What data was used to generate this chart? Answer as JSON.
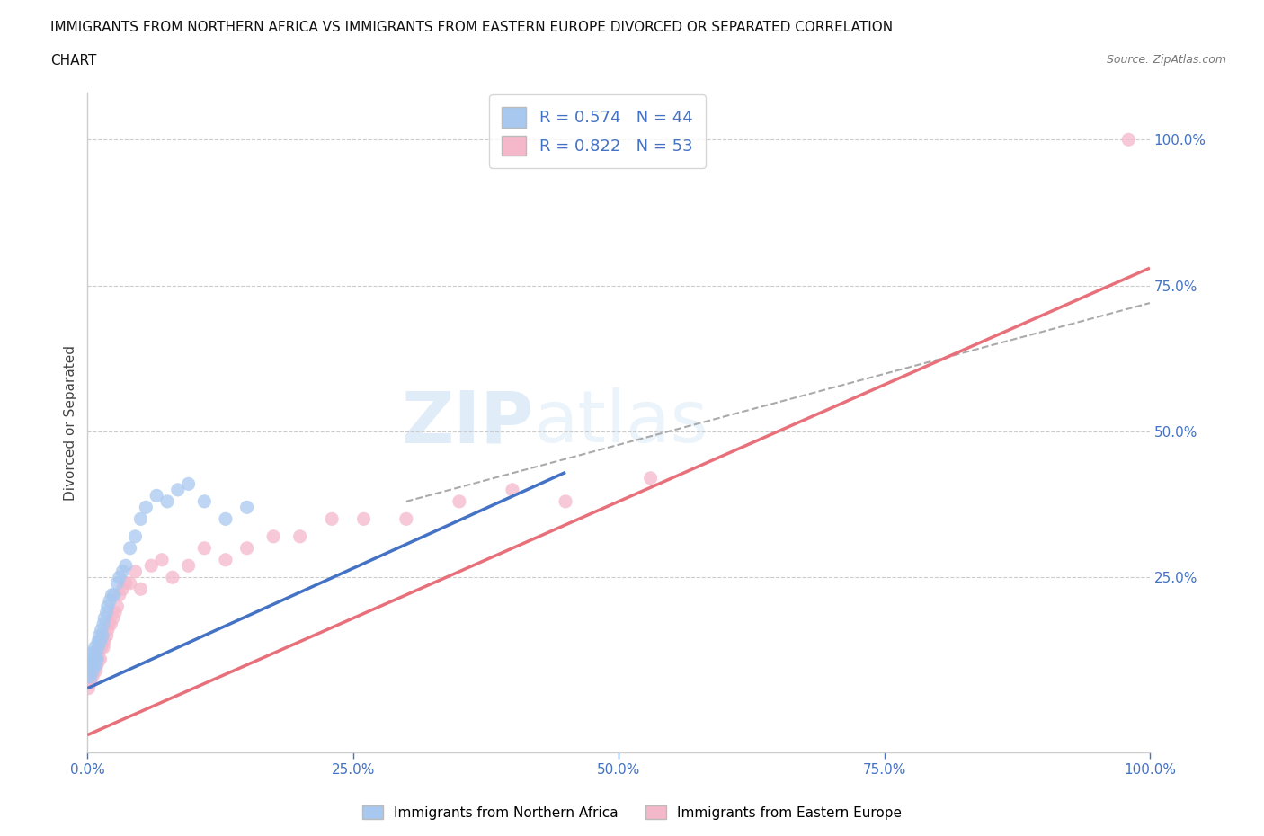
{
  "title_line1": "IMMIGRANTS FROM NORTHERN AFRICA VS IMMIGRANTS FROM EASTERN EUROPE DIVORCED OR SEPARATED CORRELATION",
  "title_line2": "CHART",
  "source_text": "Source: ZipAtlas.com",
  "ylabel": "Divorced or Separated",
  "xlim": [
    0.0,
    1.0
  ],
  "ylim": [
    -0.05,
    1.08
  ],
  "xtick_vals": [
    0.0,
    0.25,
    0.5,
    0.75,
    1.0
  ],
  "ytick_vals": [
    0.25,
    0.5,
    0.75,
    1.0
  ],
  "color_blue": "#A8C8F0",
  "color_blue_line": "#4472C4",
  "color_pink": "#F5B8CB",
  "color_pink_line": "#E8707A",
  "color_blue_text": "#4472C4",
  "color_gray_dashed": "#AAAAAA",
  "R_blue": 0.574,
  "N_blue": 44,
  "R_pink": 0.822,
  "N_pink": 53,
  "watermark_ZIP": "ZIP",
  "watermark_atlas": "atlas",
  "legend_label_blue": "Immigrants from Northern Africa",
  "legend_label_pink": "Immigrants from Eastern Europe",
  "blue_scatter_x": [
    0.001,
    0.002,
    0.002,
    0.003,
    0.003,
    0.004,
    0.004,
    0.005,
    0.005,
    0.006,
    0.006,
    0.007,
    0.007,
    0.008,
    0.008,
    0.009,
    0.01,
    0.01,
    0.011,
    0.012,
    0.013,
    0.014,
    0.015,
    0.016,
    0.018,
    0.019,
    0.021,
    0.023,
    0.025,
    0.028,
    0.03,
    0.033,
    0.036,
    0.04,
    0.045,
    0.05,
    0.055,
    0.065,
    0.075,
    0.085,
    0.095,
    0.11,
    0.13,
    0.15
  ],
  "blue_scatter_y": [
    0.08,
    0.09,
    0.1,
    0.08,
    0.11,
    0.1,
    0.12,
    0.09,
    0.11,
    0.1,
    0.12,
    0.11,
    0.13,
    0.1,
    0.12,
    0.11,
    0.13,
    0.14,
    0.15,
    0.14,
    0.16,
    0.15,
    0.17,
    0.18,
    0.19,
    0.2,
    0.21,
    0.22,
    0.22,
    0.24,
    0.25,
    0.26,
    0.27,
    0.3,
    0.32,
    0.35,
    0.37,
    0.39,
    0.38,
    0.4,
    0.41,
    0.38,
    0.35,
    0.37
  ],
  "pink_scatter_x": [
    0.001,
    0.001,
    0.002,
    0.002,
    0.003,
    0.003,
    0.004,
    0.004,
    0.005,
    0.005,
    0.006,
    0.007,
    0.007,
    0.008,
    0.009,
    0.01,
    0.01,
    0.011,
    0.012,
    0.013,
    0.014,
    0.015,
    0.016,
    0.018,
    0.019,
    0.02,
    0.022,
    0.024,
    0.026,
    0.028,
    0.03,
    0.033,
    0.036,
    0.04,
    0.045,
    0.05,
    0.06,
    0.07,
    0.08,
    0.095,
    0.11,
    0.13,
    0.15,
    0.175,
    0.2,
    0.23,
    0.26,
    0.3,
    0.35,
    0.4,
    0.45,
    0.53,
    0.98
  ],
  "pink_scatter_y": [
    0.06,
    0.08,
    0.07,
    0.09,
    0.07,
    0.08,
    0.09,
    0.1,
    0.08,
    0.1,
    0.09,
    0.1,
    0.11,
    0.09,
    0.1,
    0.11,
    0.12,
    0.13,
    0.11,
    0.13,
    0.14,
    0.13,
    0.14,
    0.15,
    0.16,
    0.17,
    0.17,
    0.18,
    0.19,
    0.2,
    0.22,
    0.23,
    0.24,
    0.24,
    0.26,
    0.23,
    0.27,
    0.28,
    0.25,
    0.27,
    0.3,
    0.28,
    0.3,
    0.32,
    0.32,
    0.35,
    0.35,
    0.35,
    0.38,
    0.4,
    0.38,
    0.42,
    1.0
  ],
  "blue_line_x0": 0.0,
  "blue_line_y0": 0.06,
  "blue_line_x1": 0.45,
  "blue_line_y1": 0.43,
  "pink_line_x0": 0.0,
  "pink_line_y0": -0.02,
  "pink_line_x1": 1.0,
  "pink_line_y1": 0.78,
  "dash_line_x0": 0.3,
  "dash_line_y0": 0.38,
  "dash_line_x1": 1.0,
  "dash_line_y1": 0.72
}
